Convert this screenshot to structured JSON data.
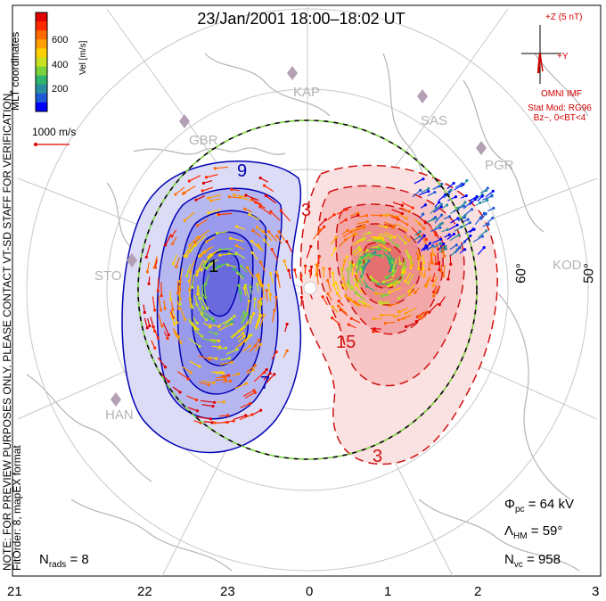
{
  "title": "23/Jan/2001 18:00–18:02 UT",
  "colorbar": {
    "label": "Vel [m/s]",
    "ticks": [
      "600",
      "400",
      "200"
    ],
    "colors": [
      "#0000ff",
      "#1e5ad8",
      "#2a8ca0",
      "#2fb36e",
      "#7ad23a",
      "#c8e020",
      "#ffd000",
      "#ffa000",
      "#ff6a00",
      "#ff2a00",
      "#e00000"
    ]
  },
  "side_texts": {
    "mlt": "MLT coordinates",
    "note": "NOTE: FOR PREVIEW PURPOSES ONLY. PLEASE CONTACT VT-SD STAFF FOR VERIFICATION.",
    "fitorder": "FitOrder: 8, mapEX format"
  },
  "scale_vector": {
    "label": "1000 m/s"
  },
  "imf": {
    "scale_label": "+Z (5 nT)",
    "y_label": "+Y",
    "source": "OMNI IMF",
    "model": "Stat Mod: RG96",
    "condition": "Bz−, 0<BT<4",
    "color": "#d00000"
  },
  "stations": [
    "KAP",
    "SAS",
    "PGR",
    "GBR",
    "STO",
    "HAN",
    "KOD"
  ],
  "latitude_labels": [
    "60°",
    "50°"
  ],
  "contour_labels": {
    "neg_a": "9",
    "neg_b": "1",
    "neg_c": "7",
    "pos_a": "3",
    "pos_b": "15",
    "pos_c": "3"
  },
  "stats": {
    "phi_pc": "Φ",
    "phi_sub": "pc",
    "phi_val": " = 64 kV",
    "lambda_hm": "Λ",
    "lambda_sub": "HM",
    "lambda_val": " = 59°",
    "nvc": "N",
    "nvc_sub": "vc",
    "nvc_val": " = 958",
    "nrads": "N",
    "nrads_sub": "rads",
    "nrads_val": " = 8"
  },
  "mlt_axis": [
    "21",
    "22",
    "23",
    "0",
    "1",
    "2",
    "3"
  ],
  "colors": {
    "negative": "#0000b4",
    "positive": "#d01010",
    "boundary_dash_a": "#000000",
    "boundary_dash_b": "#7ad23a",
    "land": "#b4b4b4",
    "grid": "#c8c8c8",
    "station": "#b4a0b4"
  }
}
